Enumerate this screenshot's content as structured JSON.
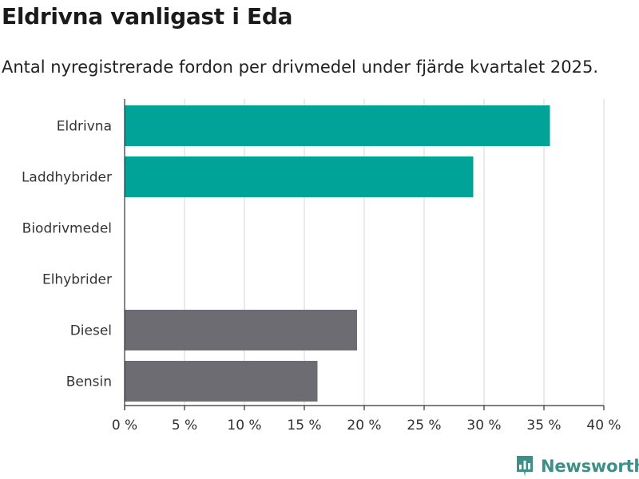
{
  "header": {
    "title": "Eldrivna vanligast i Eda",
    "subtitle": "Antal nyregistrerade fordon per drivmedel under fjärde kvartalet 2025."
  },
  "branding": {
    "logo_text": "Newsworthy"
  },
  "colors": {
    "accent": "#00a398",
    "neutral": "#6d6c72",
    "grid": "#dcdcdc",
    "axis": "#333333",
    "logo": "#3d8f8a"
  },
  "chart_data": {
    "type": "bar",
    "orientation": "horizontal",
    "title": "Eldrivna vanligast i Eda",
    "subtitle": "Antal nyregistrerade fordon per drivmedel under fjärde kvartalet 2025.",
    "categories": [
      "Eldrivna",
      "Laddhybrider",
      "Biodrivmedel",
      "Elhybrider",
      "Diesel",
      "Bensin"
    ],
    "values": [
      35.5,
      29.1,
      0,
      0,
      19.4,
      16.1
    ],
    "bar_color_keys": [
      "accent",
      "accent",
      "neutral",
      "neutral",
      "neutral",
      "neutral"
    ],
    "xlim": [
      0,
      40
    ],
    "xticks": [
      0,
      5,
      10,
      15,
      20,
      25,
      30,
      35,
      40
    ],
    "xtick_labels": [
      "0 %",
      "5 %",
      "10 %",
      "15 %",
      "20 %",
      "25 %",
      "30 %",
      "35 %",
      "40 %"
    ],
    "unit": "%",
    "grid": true,
    "legend": "none"
  }
}
